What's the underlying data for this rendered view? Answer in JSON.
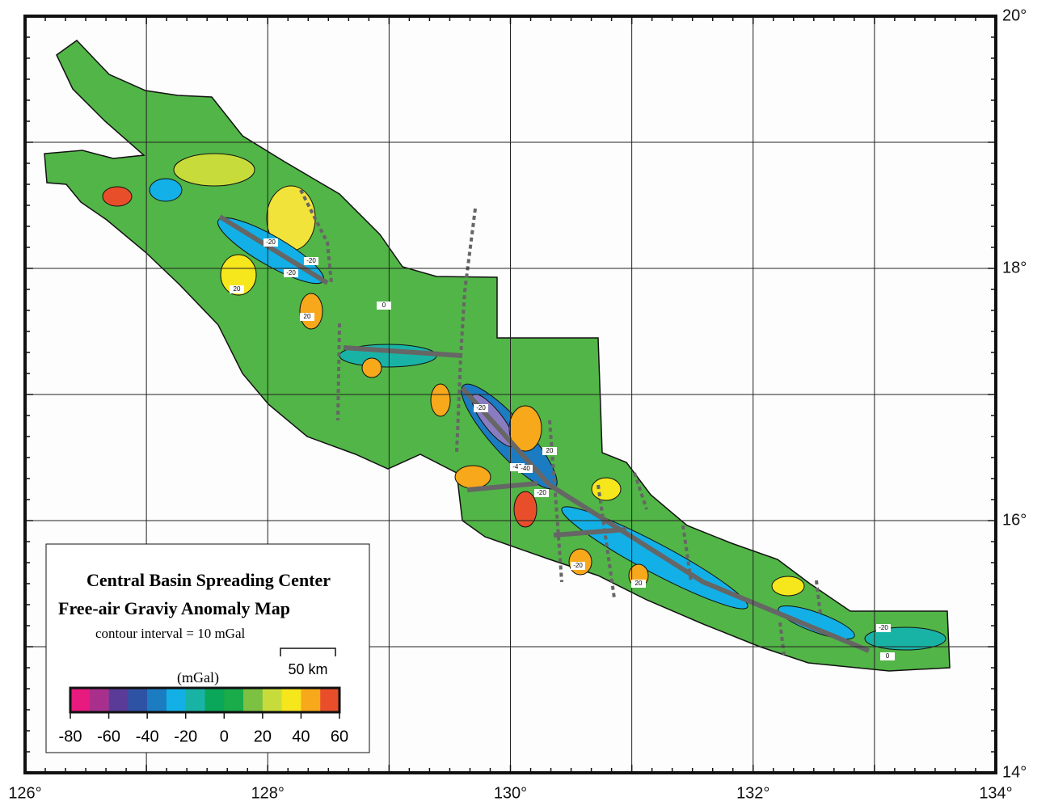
{
  "map": {
    "x_labels": [
      "126°",
      "128°",
      "130°",
      "132°",
      "134°"
    ],
    "y_labels": [
      "20°",
      "18°",
      "16°",
      "14°"
    ],
    "contour_labels": [
      "-20",
      "-20",
      "20",
      "-20",
      "0",
      "20",
      "-40",
      "-20",
      "20",
      "-20",
      "-40",
      "-20",
      "20",
      "-20",
      "0"
    ],
    "legend": {
      "title": "Central Basin Spreading Center",
      "subtitle": "Free-air Graviy Anomaly Map",
      "contour_interval": "contour interval = 10 mGal",
      "scale": "50 km",
      "unit": "(mGal)",
      "colorbar": {
        "colors": [
          "#e8197f",
          "#a8308c",
          "#5b3b98",
          "#2e53a5",
          "#1c7cc2",
          "#12b0e6",
          "#19b3a6",
          "#0aa65a",
          "#1aab4b",
          "#7cc142",
          "#c7dc3a",
          "#f6e61c",
          "#f7a81b",
          "#e94e2b"
        ],
        "ticks": [
          -80,
          -60,
          -40,
          -20,
          0,
          20,
          40,
          60
        ],
        "range": [
          -80,
          60
        ]
      }
    }
  }
}
